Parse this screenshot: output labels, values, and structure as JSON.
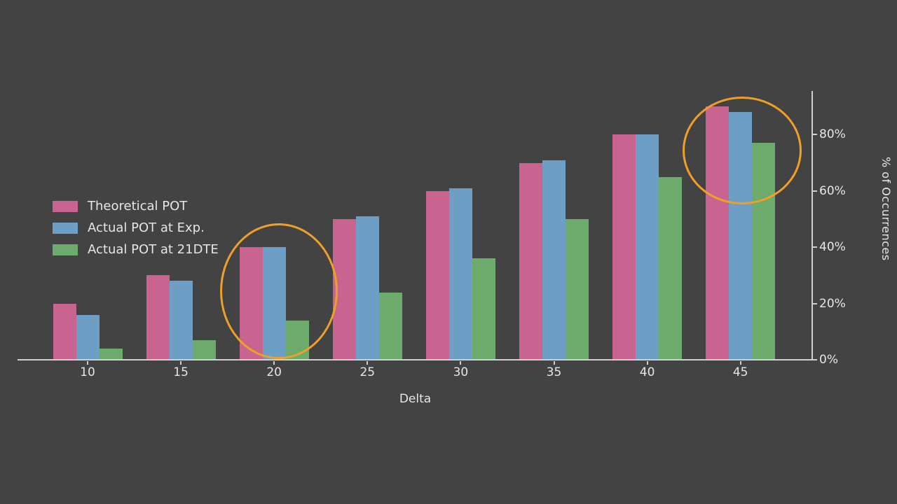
{
  "chart_data": {
    "type": "bar",
    "title": "",
    "xlabel": "Delta",
    "ylabel": "% of Occurrences",
    "categories": [
      "10",
      "15",
      "20",
      "25",
      "30",
      "35",
      "40",
      "45"
    ],
    "series": [
      {
        "name": "Theoretical POT",
        "key": "theoretical-pot",
        "color": "#c9638f",
        "values": [
          20,
          30,
          40,
          50,
          60,
          70,
          80,
          90
        ]
      },
      {
        "name": "Actual POT at Exp.",
        "key": "actual-pot-exp",
        "color": "#6d9ec6",
        "values": [
          16,
          28,
          40,
          51,
          61,
          71,
          80,
          88
        ]
      },
      {
        "name": "Actual POT at 21DTE",
        "key": "actual-pot-21dte",
        "color": "#6cab6c",
        "values": [
          4,
          7,
          14,
          24,
          36,
          50,
          65,
          77
        ]
      }
    ],
    "ylim": [
      0,
      95
    ],
    "ytick_values": [
      0,
      20,
      40,
      60,
      80
    ],
    "ytick_labels": [
      "0%",
      "20%",
      "40%",
      "60%",
      "80%"
    ],
    "grid": false,
    "legend_position": "center-left",
    "y_axis_side": "right",
    "background_color": "#434343",
    "axis_color": "#cfcfcf",
    "text_color": "#e6e6e6",
    "annotations": [
      {
        "shape": "ellipse",
        "color": "#f0a028",
        "highlights": "Delta 20 bar group"
      },
      {
        "shape": "ellipse",
        "color": "#f0a028",
        "highlights": "Delta 45 bar group"
      }
    ]
  }
}
